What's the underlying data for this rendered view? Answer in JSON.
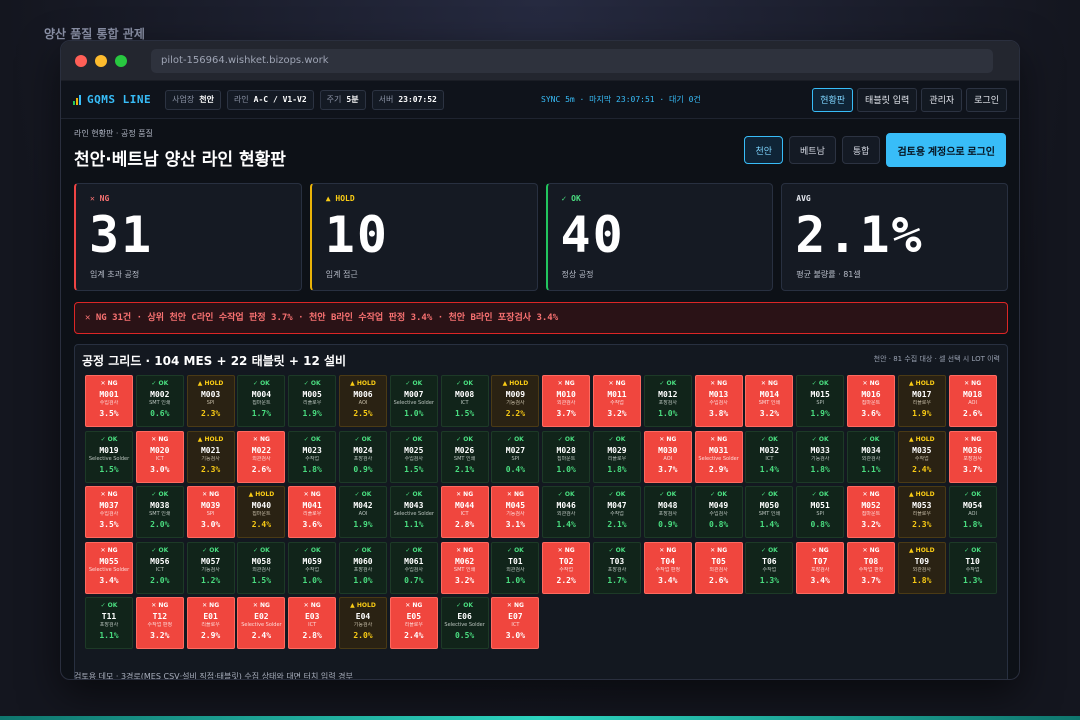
{
  "page_caption": "양산 품질 통합 관제",
  "browser": {
    "url": "pilot-156964.wishket.bizops.work"
  },
  "appbar": {
    "brand": "GQMS LINE",
    "chips": [
      {
        "key": "사업장",
        "value": "천안"
      },
      {
        "key": "라인",
        "value": "A-C / V1-V2"
      },
      {
        "key": "주기",
        "value": "5분"
      },
      {
        "key": "서버",
        "value": "23:07:52"
      }
    ],
    "sync_status": "SYNC 5m · 마지막 23:07:51 · 대기 0건",
    "nav": [
      "현황판",
      "태블릿 입력",
      "관리자",
      "로그인"
    ]
  },
  "header": {
    "breadcrumb": "라인 현황판 · 공정 품질",
    "title": "천안·베트남 양산 라인 현황판",
    "regions": [
      "천안",
      "베트남",
      "통합"
    ],
    "login_cta": "검토용 계정으로 로그인"
  },
  "kpis": [
    {
      "tag": "✕ NG",
      "value": "31",
      "label": "임계 초과 공정",
      "status": "ng"
    },
    {
      "tag": "▲ HOLD",
      "value": "10",
      "label": "임계 접근",
      "status": "hold"
    },
    {
      "tag": "✓ OK",
      "value": "40",
      "label": "정상 공정",
      "status": "ok"
    },
    {
      "tag": "AVG",
      "value": "2.1%",
      "label": "평균 불량률 · 81셀",
      "status": "avg"
    }
  ],
  "alert": "✕ NG 31건 · 상위 천안 C라인 수작업 판정 3.7% · 천안 B라인 수작업 판정 3.4% · 천안 B라인 포장검사 3.4%",
  "grid": {
    "title": "공정 그리드 · 104 MES + 22 태블릿 + 12 설비",
    "meta": "천안 · 81 수집 대상 · 셀 선택 시 LOT 이력"
  },
  "cells": [
    {
      "id": "M001",
      "status": "ng",
      "status_label": "✕ NG",
      "process": "수입검사",
      "rate": "3.5%"
    },
    {
      "id": "M002",
      "status": "ok",
      "status_label": "✓ OK",
      "process": "SMT 인쇄",
      "rate": "0.6%"
    },
    {
      "id": "M003",
      "status": "hold",
      "status_label": "▲ HOLD",
      "process": "SPI",
      "rate": "2.3%"
    },
    {
      "id": "M004",
      "status": "ok",
      "status_label": "✓ OK",
      "process": "칩마운트",
      "rate": "1.7%"
    },
    {
      "id": "M005",
      "status": "ok",
      "status_label": "✓ OK",
      "process": "리플로우",
      "rate": "1.9%"
    },
    {
      "id": "M006",
      "status": "hold",
      "status_label": "▲ HOLD",
      "process": "AOI",
      "rate": "2.5%"
    },
    {
      "id": "M007",
      "status": "ok",
      "status_label": "✓ OK",
      "process": "Selective Solder",
      "rate": "1.0%"
    },
    {
      "id": "M008",
      "status": "ok",
      "status_label": "✓ OK",
      "process": "ICT",
      "rate": "1.5%"
    },
    {
      "id": "M009",
      "status": "hold",
      "status_label": "▲ HOLD",
      "process": "기능검사",
      "rate": "2.2%"
    },
    {
      "id": "M010",
      "status": "ng",
      "status_label": "✕ NG",
      "process": "외관검사",
      "rate": "3.7%"
    },
    {
      "id": "M011",
      "status": "ng",
      "status_label": "✕ NG",
      "process": "수작업",
      "rate": "3.2%"
    },
    {
      "id": "M012",
      "status": "ok",
      "status_label": "✓ OK",
      "process": "포장검사",
      "rate": "1.0%"
    },
    {
      "id": "M013",
      "status": "ng",
      "status_label": "✕ NG",
      "process": "수입검사",
      "rate": "3.8%"
    },
    {
      "id": "M014",
      "status": "ng",
      "status_label": "✕ NG",
      "process": "SMT 인쇄",
      "rate": "3.2%"
    },
    {
      "id": "M015",
      "status": "ok",
      "status_label": "✓ OK",
      "process": "SPI",
      "rate": "1.9%"
    },
    {
      "id": "M016",
      "status": "ng",
      "status_label": "✕ NG",
      "process": "칩마운트",
      "rate": "3.6%"
    },
    {
      "id": "M017",
      "status": "hold",
      "status_label": "▲ HOLD",
      "process": "리플로우",
      "rate": "1.9%"
    },
    {
      "id": "M018",
      "status": "ng",
      "status_label": "✕ NG",
      "process": "AOI",
      "rate": "2.6%"
    },
    {
      "id": "M019",
      "status": "ok",
      "status_label": "✓ OK",
      "process": "Selective Solder",
      "rate": "1.5%"
    },
    {
      "id": "M020",
      "status": "ng",
      "status_label": "✕ NG",
      "process": "ICT",
      "rate": "3.0%"
    },
    {
      "id": "M021",
      "status": "hold",
      "status_label": "▲ HOLD",
      "process": "기능검사",
      "rate": "2.3%"
    },
    {
      "id": "M022",
      "status": "ng",
      "status_label": "✕ NG",
      "process": "외관검사",
      "rate": "2.6%"
    },
    {
      "id": "M023",
      "status": "ok",
      "status_label": "✓ OK",
      "process": "수작업",
      "rate": "1.8%"
    },
    {
      "id": "M024",
      "status": "ok",
      "status_label": "✓ OK",
      "process": "포장검사",
      "rate": "0.9%"
    },
    {
      "id": "M025",
      "status": "ok",
      "status_label": "✓ OK",
      "process": "수입검사",
      "rate": "1.5%"
    },
    {
      "id": "M026",
      "status": "ok",
      "status_label": "✓ OK",
      "process": "SMT 인쇄",
      "rate": "2.1%"
    },
    {
      "id": "M027",
      "status": "ok",
      "status_label": "✓ OK",
      "process": "SPI",
      "rate": "0.4%"
    },
    {
      "id": "M028",
      "status": "ok",
      "status_label": "✓ OK",
      "process": "칩마운트",
      "rate": "1.0%"
    },
    {
      "id": "M029",
      "status": "ok",
      "status_label": "✓ OK",
      "process": "리플로우",
      "rate": "1.8%"
    },
    {
      "id": "M030",
      "status": "ng",
      "status_label": "✕ NG",
      "process": "AOI",
      "rate": "3.7%"
    },
    {
      "id": "M031",
      "status": "ng",
      "status_label": "✕ NG",
      "process": "Selective Solder",
      "rate": "2.9%"
    },
    {
      "id": "M032",
      "status": "ok",
      "status_label": "✓ OK",
      "process": "ICT",
      "rate": "1.4%"
    },
    {
      "id": "M033",
      "status": "ok",
      "status_label": "✓ OK",
      "process": "기능검사",
      "rate": "1.8%"
    },
    {
      "id": "M034",
      "status": "ok",
      "status_label": "✓ OK",
      "process": "외관검사",
      "rate": "1.1%"
    },
    {
      "id": "M035",
      "status": "hold",
      "status_label": "▲ HOLD",
      "process": "수작업",
      "rate": "2.4%"
    },
    {
      "id": "M036",
      "status": "ng",
      "status_label": "✕ NG",
      "process": "포장검사",
      "rate": "3.7%"
    },
    {
      "id": "M037",
      "status": "ng",
      "status_label": "✕ NG",
      "process": "수입검사",
      "rate": "3.5%"
    },
    {
      "id": "M038",
      "status": "ok",
      "status_label": "✓ OK",
      "process": "SMT 인쇄",
      "rate": "2.0%"
    },
    {
      "id": "M039",
      "status": "ng",
      "status_label": "✕ NG",
      "process": "SPI",
      "rate": "3.0%"
    },
    {
      "id": "M040",
      "status": "hold",
      "status_label": "▲ HOLD",
      "process": "칩마운트",
      "rate": "2.4%"
    },
    {
      "id": "M041",
      "status": "ng",
      "status_label": "✕ NG",
      "process": "리플로우",
      "rate": "3.6%"
    },
    {
      "id": "M042",
      "status": "ok",
      "status_label": "✓ OK",
      "process": "AOI",
      "rate": "1.9%"
    },
    {
      "id": "M043",
      "status": "ok",
      "status_label": "✓ OK",
      "process": "Selective Solder",
      "rate": "1.1%"
    },
    {
      "id": "M044",
      "status": "ng",
      "status_label": "✕ NG",
      "process": "ICT",
      "rate": "2.8%"
    },
    {
      "id": "M045",
      "status": "ng",
      "status_label": "✕ NG",
      "process": "기능검사",
      "rate": "3.1%"
    },
    {
      "id": "M046",
      "status": "ok",
      "status_label": "✓ OK",
      "process": "외관검사",
      "rate": "1.4%"
    },
    {
      "id": "M047",
      "status": "ok",
      "status_label": "✓ OK",
      "process": "수작업",
      "rate": "2.1%"
    },
    {
      "id": "M048",
      "status": "ok",
      "status_label": "✓ OK",
      "process": "포장검사",
      "rate": "0.9%"
    },
    {
      "id": "M049",
      "status": "ok",
      "status_label": "✓ OK",
      "process": "수입검사",
      "rate": "0.8%"
    },
    {
      "id": "M050",
      "status": "ok",
      "status_label": "✓ OK",
      "process": "SMT 인쇄",
      "rate": "1.4%"
    },
    {
      "id": "M051",
      "status": "ok",
      "status_label": "✓ OK",
      "process": "SPI",
      "rate": "0.8%"
    },
    {
      "id": "M052",
      "status": "ng",
      "status_label": "✕ NG",
      "process": "칩마운트",
      "rate": "3.2%"
    },
    {
      "id": "M053",
      "status": "hold",
      "status_label": "▲ HOLD",
      "process": "리플로우",
      "rate": "2.3%"
    },
    {
      "id": "M054",
      "status": "ok",
      "status_label": "✓ OK",
      "process": "AOI",
      "rate": "1.8%"
    },
    {
      "id": "M055",
      "status": "ng",
      "status_label": "✕ NG",
      "process": "Selective Solder",
      "rate": "3.4%"
    },
    {
      "id": "M056",
      "status": "ok",
      "status_label": "✓ OK",
      "process": "ICT",
      "rate": "2.0%"
    },
    {
      "id": "M057",
      "status": "ok",
      "status_label": "✓ OK",
      "process": "기능검사",
      "rate": "1.2%"
    },
    {
      "id": "M058",
      "status": "ok",
      "status_label": "✓ OK",
      "process": "외관검사",
      "rate": "1.5%"
    },
    {
      "id": "M059",
      "status": "ok",
      "status_label": "✓ OK",
      "process": "수작업",
      "rate": "1.0%"
    },
    {
      "id": "M060",
      "status": "ok",
      "status_label": "✓ OK",
      "process": "포장검사",
      "rate": "1.0%"
    },
    {
      "id": "M061",
      "status": "ok",
      "status_label": "✓ OK",
      "process": "수입검사",
      "rate": "0.7%"
    },
    {
      "id": "M062",
      "status": "ng",
      "status_label": "✕ NG",
      "process": "SMT 인쇄",
      "rate": "3.2%"
    },
    {
      "id": "T01",
      "status": "ok",
      "status_label": "✓ OK",
      "process": "외관검사",
      "rate": "1.0%"
    },
    {
      "id": "T02",
      "status": "ng",
      "status_label": "✕ NG",
      "process": "수작업",
      "rate": "2.2%"
    },
    {
      "id": "T03",
      "status": "ok",
      "status_label": "✓ OK",
      "process": "포장검사",
      "rate": "1.7%"
    },
    {
      "id": "T04",
      "status": "ng",
      "status_label": "✕ NG",
      "process": "수작업 판정",
      "rate": "3.4%"
    },
    {
      "id": "T05",
      "status": "ng",
      "status_label": "✕ NG",
      "process": "외관검사",
      "rate": "2.6%"
    },
    {
      "id": "T06",
      "status": "ok",
      "status_label": "✓ OK",
      "process": "수작업",
      "rate": "1.3%"
    },
    {
      "id": "T07",
      "status": "ng",
      "status_label": "✕ NG",
      "process": "포장검사",
      "rate": "3.4%"
    },
    {
      "id": "T08",
      "status": "ng",
      "status_label": "✕ NG",
      "process": "수작업 판정",
      "rate": "3.7%"
    },
    {
      "id": "T09",
      "status": "hold",
      "status_label": "▲ HOLD",
      "process": "외관검사",
      "rate": "1.8%"
    },
    {
      "id": "T10",
      "status": "ok",
      "status_label": "✓ OK",
      "process": "수작업",
      "rate": "1.3%"
    },
    {
      "id": "T11",
      "status": "ok",
      "status_label": "✓ OK",
      "process": "포장검사",
      "rate": "1.1%"
    },
    {
      "id": "T12",
      "status": "ng",
      "status_label": "✕ NG",
      "process": "수작업 판정",
      "rate": "3.2%"
    },
    {
      "id": "E01",
      "status": "ng",
      "status_label": "✕ NG",
      "process": "리플로우",
      "rate": "2.9%"
    },
    {
      "id": "E02",
      "status": "ng",
      "status_label": "✕ NG",
      "process": "Selective Solder",
      "rate": "2.4%"
    },
    {
      "id": "E03",
      "status": "ng",
      "status_label": "✕ NG",
      "process": "ICT",
      "rate": "2.8%"
    },
    {
      "id": "E04",
      "status": "hold",
      "status_label": "▲ HOLD",
      "process": "기능검사",
      "rate": "2.0%"
    },
    {
      "id": "E05",
      "status": "ng",
      "status_label": "✕ NG",
      "process": "리플로우",
      "rate": "2.4%"
    },
    {
      "id": "E06",
      "status": "ok",
      "status_label": "✓ OK",
      "process": "Selective Solder",
      "rate": "0.5%"
    },
    {
      "id": "E07",
      "status": "ng",
      "status_label": "✕ NG",
      "process": "ICT",
      "rate": "3.0%"
    }
  ],
  "footer_note": "검토용 데모 · 3경로(MES CSV·설비 직접·태블릿) 수집 상태와 대면 터치 입력 경부"
}
